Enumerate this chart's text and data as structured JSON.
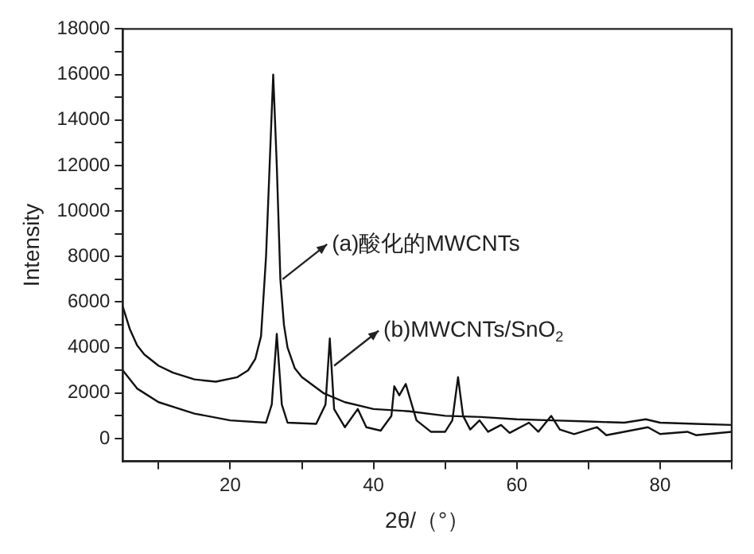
{
  "chart_data": {
    "type": "line",
    "xlabel": "2θ/（°）",
    "ylabel": "Intensity",
    "xlim": [
      5,
      90
    ],
    "xticks": [
      {
        "value": 10,
        "label": null
      },
      20,
      {
        "value": 30,
        "label": null
      },
      40,
      {
        "value": 50,
        "label": null
      },
      60,
      {
        "value": 70,
        "label": null
      },
      80,
      {
        "value": 90,
        "label": null
      }
    ],
    "ylim": [
      -1000,
      18000
    ],
    "yticks": [
      0,
      {
        "value": 1000,
        "label": null
      },
      2000,
      {
        "value": 3000,
        "label": null
      },
      4000,
      {
        "value": 5000,
        "label": null
      },
      6000,
      {
        "value": 7000,
        "label": null
      },
      8000,
      {
        "value": 9000,
        "label": null
      },
      10000,
      {
        "value": 11000,
        "label": null
      },
      12000,
      {
        "value": 13000,
        "label": null
      },
      14000,
      {
        "value": 15000,
        "label": null
      },
      16000,
      {
        "value": 17000,
        "label": null
      },
      18000
    ],
    "grid": false,
    "legend": false,
    "marker": "none",
    "line_style": "solid",
    "series": [
      {
        "color": "#111111",
        "x": [
          5,
          6,
          7,
          8,
          10,
          12,
          15,
          18,
          21,
          22.5,
          23.5,
          24.3,
          25,
          25.5,
          26,
          26.5,
          27,
          27.5,
          28,
          29,
          30,
          33,
          36,
          40,
          45,
          50,
          55,
          60,
          65,
          70,
          75,
          78,
          80,
          85,
          90
        ],
        "values": [
          5800,
          4800,
          4100,
          3700,
          3200,
          2900,
          2600,
          2500,
          2700,
          3000,
          3500,
          4500,
          8000,
          12000,
          16000,
          12000,
          7000,
          5000,
          4000,
          3100,
          2700,
          2000,
          1600,
          1300,
          1200,
          1000,
          950,
          850,
          800,
          750,
          700,
          850,
          700,
          650,
          600
        ]
      },
      {
        "color": "#111111",
        "x": [
          5,
          7,
          10,
          15,
          20,
          25,
          25.8,
          26.5,
          27.2,
          28,
          32,
          33.3,
          33.9,
          34.5,
          36,
          37.8,
          39,
          41,
          42.5,
          42.9,
          43.6,
          44.5,
          46,
          48,
          50,
          51,
          51.8,
          52.5,
          53.5,
          54.8,
          56,
          57.8,
          59,
          61.7,
          63,
          64.8,
          66,
          68,
          71.2,
          72.5,
          78.3,
          80,
          83.8,
          85,
          90
        ],
        "values": [
          3000,
          2200,
          1600,
          1100,
          800,
          700,
          1500,
          4600,
          1500,
          700,
          650,
          1500,
          4400,
          1300,
          500,
          1300,
          500,
          350,
          1000,
          2300,
          1900,
          2400,
          800,
          300,
          300,
          800,
          2700,
          1000,
          400,
          800,
          300,
          600,
          250,
          700,
          300,
          1000,
          400,
          200,
          500,
          150,
          500,
          200,
          300,
          150,
          300
        ]
      }
    ],
    "annotations": [
      {
        "text": "(a)酸化的MWCNTs",
        "x": 27.3,
        "y": 7000
      },
      {
        "text": "(b)MWCNTs/SnO$_{2}$",
        "x": 34.5,
        "y": 3200
      }
    ]
  }
}
